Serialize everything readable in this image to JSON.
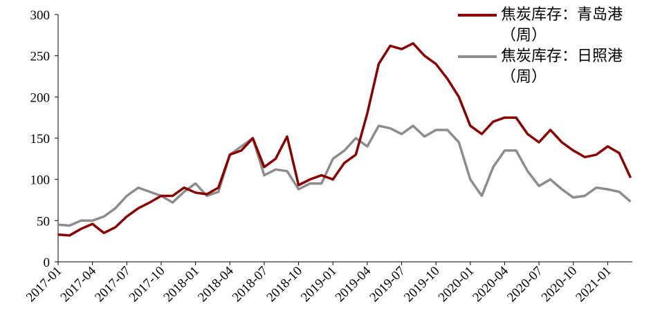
{
  "chart_data": {
    "type": "line",
    "x": [
      "2017-01",
      "2017-02",
      "2017-03",
      "2017-04",
      "2017-05",
      "2017-06",
      "2017-07",
      "2017-08",
      "2017-09",
      "2017-10",
      "2017-11",
      "2017-12",
      "2018-01",
      "2018-02",
      "2018-03",
      "2018-04",
      "2018-05",
      "2018-06",
      "2018-07",
      "2018-08",
      "2018-09",
      "2018-10",
      "2018-11",
      "2018-12",
      "2019-01",
      "2019-02",
      "2019-03",
      "2019-04",
      "2019-05",
      "2019-06",
      "2019-07",
      "2019-08",
      "2019-09",
      "2019-10",
      "2019-11",
      "2019-12",
      "2020-01",
      "2020-02",
      "2020-03",
      "2020-04",
      "2020-05",
      "2020-06",
      "2020-07",
      "2020-08",
      "2020-09",
      "2020-10",
      "2020-11",
      "2020-12",
      "2021-01",
      "2021-02",
      "2021-03"
    ],
    "series": [
      {
        "name": "焦炭库存：青岛港（周）",
        "color": "#8b0000",
        "values": [
          33,
          32,
          40,
          46,
          35,
          42,
          55,
          65,
          72,
          80,
          80,
          90,
          84,
          82,
          90,
          130,
          135,
          150,
          115,
          125,
          152,
          93,
          100,
          105,
          100,
          120,
          130,
          180,
          240,
          262,
          258,
          265,
          250,
          240,
          222,
          200,
          165,
          155,
          170,
          175,
          175,
          155,
          145,
          160,
          145,
          135,
          127,
          130,
          140,
          132,
          102
        ]
      },
      {
        "name": "焦炭库存：日照港（周）",
        "color": "#8c8c8c",
        "values": [
          45,
          44,
          50,
          50,
          55,
          65,
          80,
          90,
          85,
          80,
          72,
          85,
          95,
          80,
          85,
          130,
          140,
          150,
          105,
          112,
          110,
          88,
          95,
          95,
          125,
          135,
          150,
          140,
          165,
          162,
          155,
          165,
          152,
          160,
          160,
          145,
          100,
          80,
          115,
          135,
          135,
          110,
          92,
          100,
          88,
          78,
          80,
          90,
          88,
          85,
          73
        ]
      }
    ],
    "ylim": [
      0,
      300
    ],
    "yticks": [
      0,
      50,
      100,
      150,
      200,
      250,
      300
    ],
    "xticks": [
      "2017-01",
      "2017-04",
      "2017-07",
      "2017-10",
      "2018-01",
      "2018-04",
      "2018-07",
      "2018-10",
      "2019-01",
      "2019-04",
      "2019-07",
      "2019-10",
      "2020-01",
      "2020-04",
      "2020-07",
      "2020-10",
      "2021-01"
    ],
    "legend": "upper right"
  }
}
